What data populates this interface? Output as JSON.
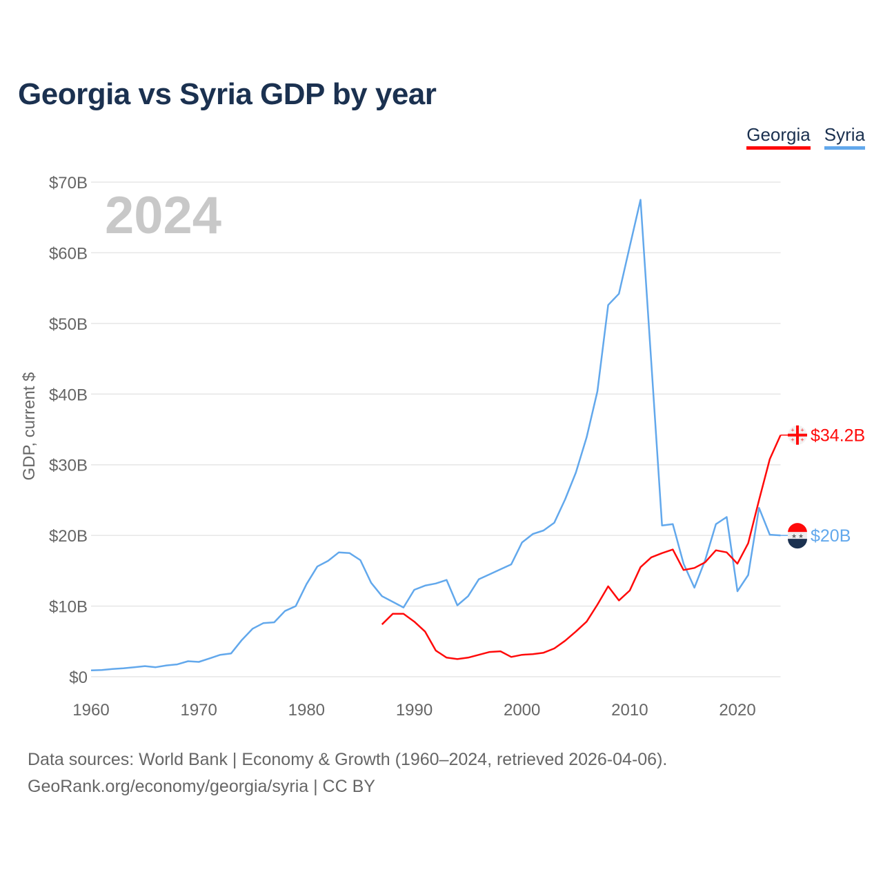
{
  "title": "Georgia vs Syria GDP by year",
  "legend": [
    {
      "name": "Georgia",
      "color": "#ff0a0a"
    },
    {
      "name": "Syria",
      "color": "#62a8ec"
    }
  ],
  "footer": {
    "line1": "Data sources: World Bank | Economy & Growth (1960–2024, retrieved 2026-04-06).",
    "line2": "GeoRank.org/economy/georgia/syria | CC BY"
  },
  "chart_data": {
    "type": "line",
    "title": "Georgia vs Syria GDP by year",
    "xlabel": "",
    "ylabel": "GDP, current $",
    "year_label": "2024",
    "xlim": [
      1960,
      2024
    ],
    "ylim": [
      0,
      70
    ],
    "x_ticks": [
      1960,
      1970,
      1980,
      1990,
      2000,
      2010,
      2020
    ],
    "x_tick_labels": [
      "1960",
      "1970",
      "1980",
      "1990",
      "2000",
      "2010",
      "2020"
    ],
    "y_ticks": [
      0,
      10,
      20,
      30,
      40,
      50,
      60,
      70
    ],
    "y_tick_labels": [
      "$0",
      "$10B",
      "$20B",
      "$30B",
      "$40B",
      "$50B",
      "$60B",
      "$70B"
    ],
    "grid": true,
    "legend_position": "top-right",
    "series": [
      {
        "name": "Syria",
        "color": "#62a8ec",
        "end_label": "$20B",
        "x": [
          1960,
          1961,
          1962,
          1963,
          1964,
          1965,
          1966,
          1967,
          1968,
          1969,
          1970,
          1971,
          1972,
          1973,
          1974,
          1975,
          1976,
          1977,
          1978,
          1979,
          1980,
          1981,
          1982,
          1983,
          1984,
          1985,
          1986,
          1987,
          1988,
          1989,
          1990,
          1991,
          1992,
          1993,
          1994,
          1995,
          1996,
          1997,
          1998,
          1999,
          2000,
          2001,
          2002,
          2003,
          2004,
          2005,
          2006,
          2007,
          2008,
          2009,
          2010,
          2011,
          2012,
          2013,
          2014,
          2015,
          2016,
          2017,
          2018,
          2019,
          2020,
          2021,
          2022,
          2023,
          2024
        ],
        "values": [
          0.9,
          0.95,
          1.1,
          1.2,
          1.35,
          1.5,
          1.35,
          1.6,
          1.75,
          2.2,
          2.1,
          2.6,
          3.1,
          3.3,
          5.2,
          6.8,
          7.6,
          7.7,
          9.3,
          10.0,
          13.1,
          15.6,
          16.4,
          17.6,
          17.5,
          16.5,
          13.3,
          11.4,
          10.6,
          9.8,
          12.3,
          12.9,
          13.2,
          13.7,
          10.1,
          11.4,
          13.8,
          14.5,
          15.2,
          15.9,
          19.0,
          20.2,
          20.7,
          21.8,
          25.1,
          28.9,
          33.9,
          40.4,
          52.6,
          54.2,
          60.9,
          67.5,
          44.5,
          21.4,
          21.6,
          16.0,
          12.6,
          16.5,
          21.6,
          22.6,
          12.1,
          14.4,
          23.9,
          20.1,
          20.0
        ]
      },
      {
        "name": "Georgia",
        "color": "#ff0a0a",
        "end_label": "$34.2B",
        "x": [
          1987,
          1988,
          1989,
          1990,
          1991,
          1992,
          1993,
          1994,
          1995,
          1996,
          1997,
          1998,
          1999,
          2000,
          2001,
          2002,
          2003,
          2004,
          2005,
          2006,
          2007,
          2008,
          2009,
          2010,
          2011,
          2012,
          2013,
          2014,
          2015,
          2016,
          2017,
          2018,
          2019,
          2020,
          2021,
          2022,
          2023,
          2024
        ],
        "values": [
          7.4,
          8.9,
          8.9,
          7.8,
          6.4,
          3.7,
          2.7,
          2.5,
          2.7,
          3.1,
          3.5,
          3.6,
          2.8,
          3.1,
          3.2,
          3.4,
          4.0,
          5.1,
          6.4,
          7.8,
          10.2,
          12.8,
          10.8,
          12.2,
          15.5,
          16.9,
          17.5,
          18.0,
          15.1,
          15.4,
          16.2,
          17.9,
          17.6,
          16.0,
          18.9,
          25.0,
          30.8,
          34.2
        ]
      }
    ]
  }
}
